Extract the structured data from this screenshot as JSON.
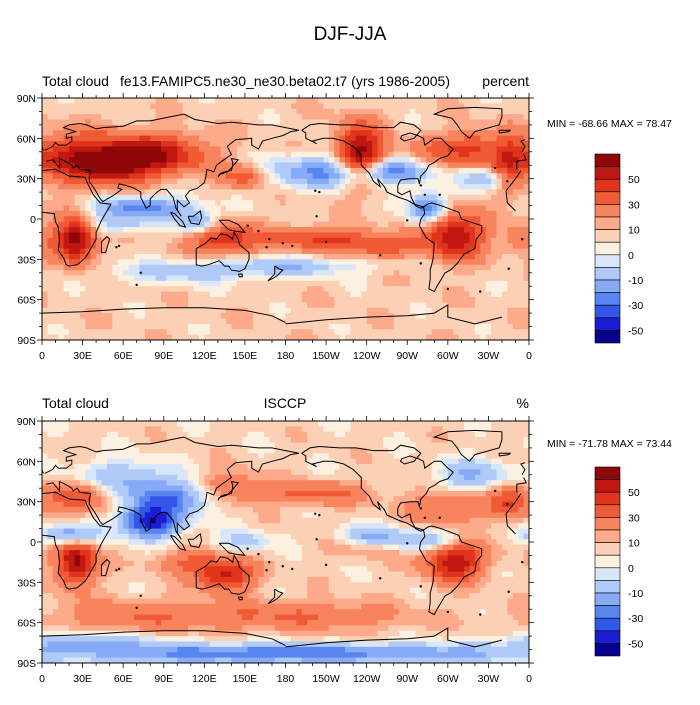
{
  "figure": {
    "title": "DJF-JJA"
  },
  "colorbar_labels": [
    "50",
    "30",
    "10",
    "0",
    "-10",
    "-30",
    "-50"
  ],
  "palette": [
    "#08008a",
    "#1c1cd4",
    "#3256e8",
    "#5886f0",
    "#86aaf6",
    "#b0caf8",
    "#d8e6fa",
    "#fcf0e0",
    "#fcd0b4",
    "#fcaa8a",
    "#f8845e",
    "#f05a34",
    "#e0341c",
    "#c01810",
    "#8e0808"
  ],
  "chart_data": [
    {
      "type": "heatmap",
      "left_title": "Total cloud",
      "center_title": "fe13.FAMIPC5.ne30_ne30.beta02.t7 (yrs 1986-2005)",
      "right_title": "percent",
      "stats": "MIN = -68.66 MAX =  78.47",
      "min": -68.66,
      "max": 78.47,
      "x_ticks": [
        "0",
        "30E",
        "60E",
        "90E",
        "120E",
        "150E",
        "180",
        "150W",
        "120W",
        "90W",
        "60W",
        "30W",
        "0"
      ],
      "y_ticks": [
        "90N",
        "60N",
        "30N",
        "0",
        "30S",
        "60S",
        "90S"
      ],
      "xlim": [
        0,
        360
      ],
      "ylim": [
        -90,
        90
      ],
      "contour_levels": [
        -60,
        -50,
        -40,
        -30,
        -20,
        -10,
        -5,
        0,
        5,
        10,
        20,
        30,
        40,
        50,
        60
      ]
    },
    {
      "type": "heatmap",
      "left_title": "Total cloud",
      "center_title": "ISCCP",
      "right_title": "%",
      "stats": "MIN = -71.78 MAX =  73.44",
      "min": -71.78,
      "max": 73.44,
      "x_ticks": [
        "0",
        "30E",
        "60E",
        "90E",
        "120E",
        "150E",
        "180",
        "150W",
        "120W",
        "90W",
        "60W",
        "30W",
        "0"
      ],
      "y_ticks": [
        "90N",
        "60N",
        "30N",
        "0",
        "30S",
        "60S",
        "90S"
      ],
      "xlim": [
        0,
        360
      ],
      "ylim": [
        -90,
        90
      ],
      "contour_levels": [
        -60,
        -50,
        -40,
        -30,
        -20,
        -10,
        -5,
        0,
        5,
        10,
        20,
        30,
        40,
        50,
        60
      ]
    }
  ]
}
